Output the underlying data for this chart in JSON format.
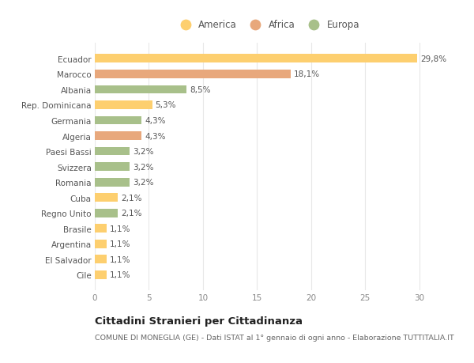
{
  "categories": [
    "Cile",
    "El Salvador",
    "Argentina",
    "Brasile",
    "Regno Unito",
    "Cuba",
    "Romania",
    "Svizzera",
    "Paesi Bassi",
    "Algeria",
    "Germania",
    "Rep. Dominicana",
    "Albania",
    "Marocco",
    "Ecuador"
  ],
  "values": [
    1.1,
    1.1,
    1.1,
    1.1,
    2.1,
    2.1,
    3.2,
    3.2,
    3.2,
    4.3,
    4.3,
    5.3,
    8.5,
    18.1,
    29.8
  ],
  "colors": [
    "#FDCF6F",
    "#FDCF6F",
    "#FDCF6F",
    "#FDCF6F",
    "#A8C08A",
    "#FDCF6F",
    "#A8C08A",
    "#A8C08A",
    "#A8C08A",
    "#E8A87C",
    "#A8C08A",
    "#FDCF6F",
    "#A8C08A",
    "#E8A87C",
    "#FDCF6F"
  ],
  "labels": [
    "1,1%",
    "1,1%",
    "1,1%",
    "1,1%",
    "2,1%",
    "2,1%",
    "3,2%",
    "3,2%",
    "3,2%",
    "4,3%",
    "4,3%",
    "5,3%",
    "8,5%",
    "18,1%",
    "29,8%"
  ],
  "xlim": [
    0,
    32
  ],
  "xticks": [
    0,
    5,
    10,
    15,
    20,
    25,
    30
  ],
  "title": "Cittadini Stranieri per Cittadinanza",
  "subtitle": "COMUNE DI MONEGLIA (GE) - Dati ISTAT al 1° gennaio di ogni anno - Elaborazione TUTTITALIA.IT",
  "legend_labels": [
    "America",
    "Africa",
    "Europa"
  ],
  "legend_colors": [
    "#FDCF6F",
    "#E8A87C",
    "#A8C08A"
  ],
  "background_color": "#FFFFFF",
  "grid_color": "#E8E8E8",
  "bar_height": 0.55,
  "label_fontsize": 7.5,
  "tick_fontsize": 7.5,
  "ylabel_fontsize": 7.5,
  "title_fontsize": 9.5,
  "subtitle_fontsize": 6.8
}
